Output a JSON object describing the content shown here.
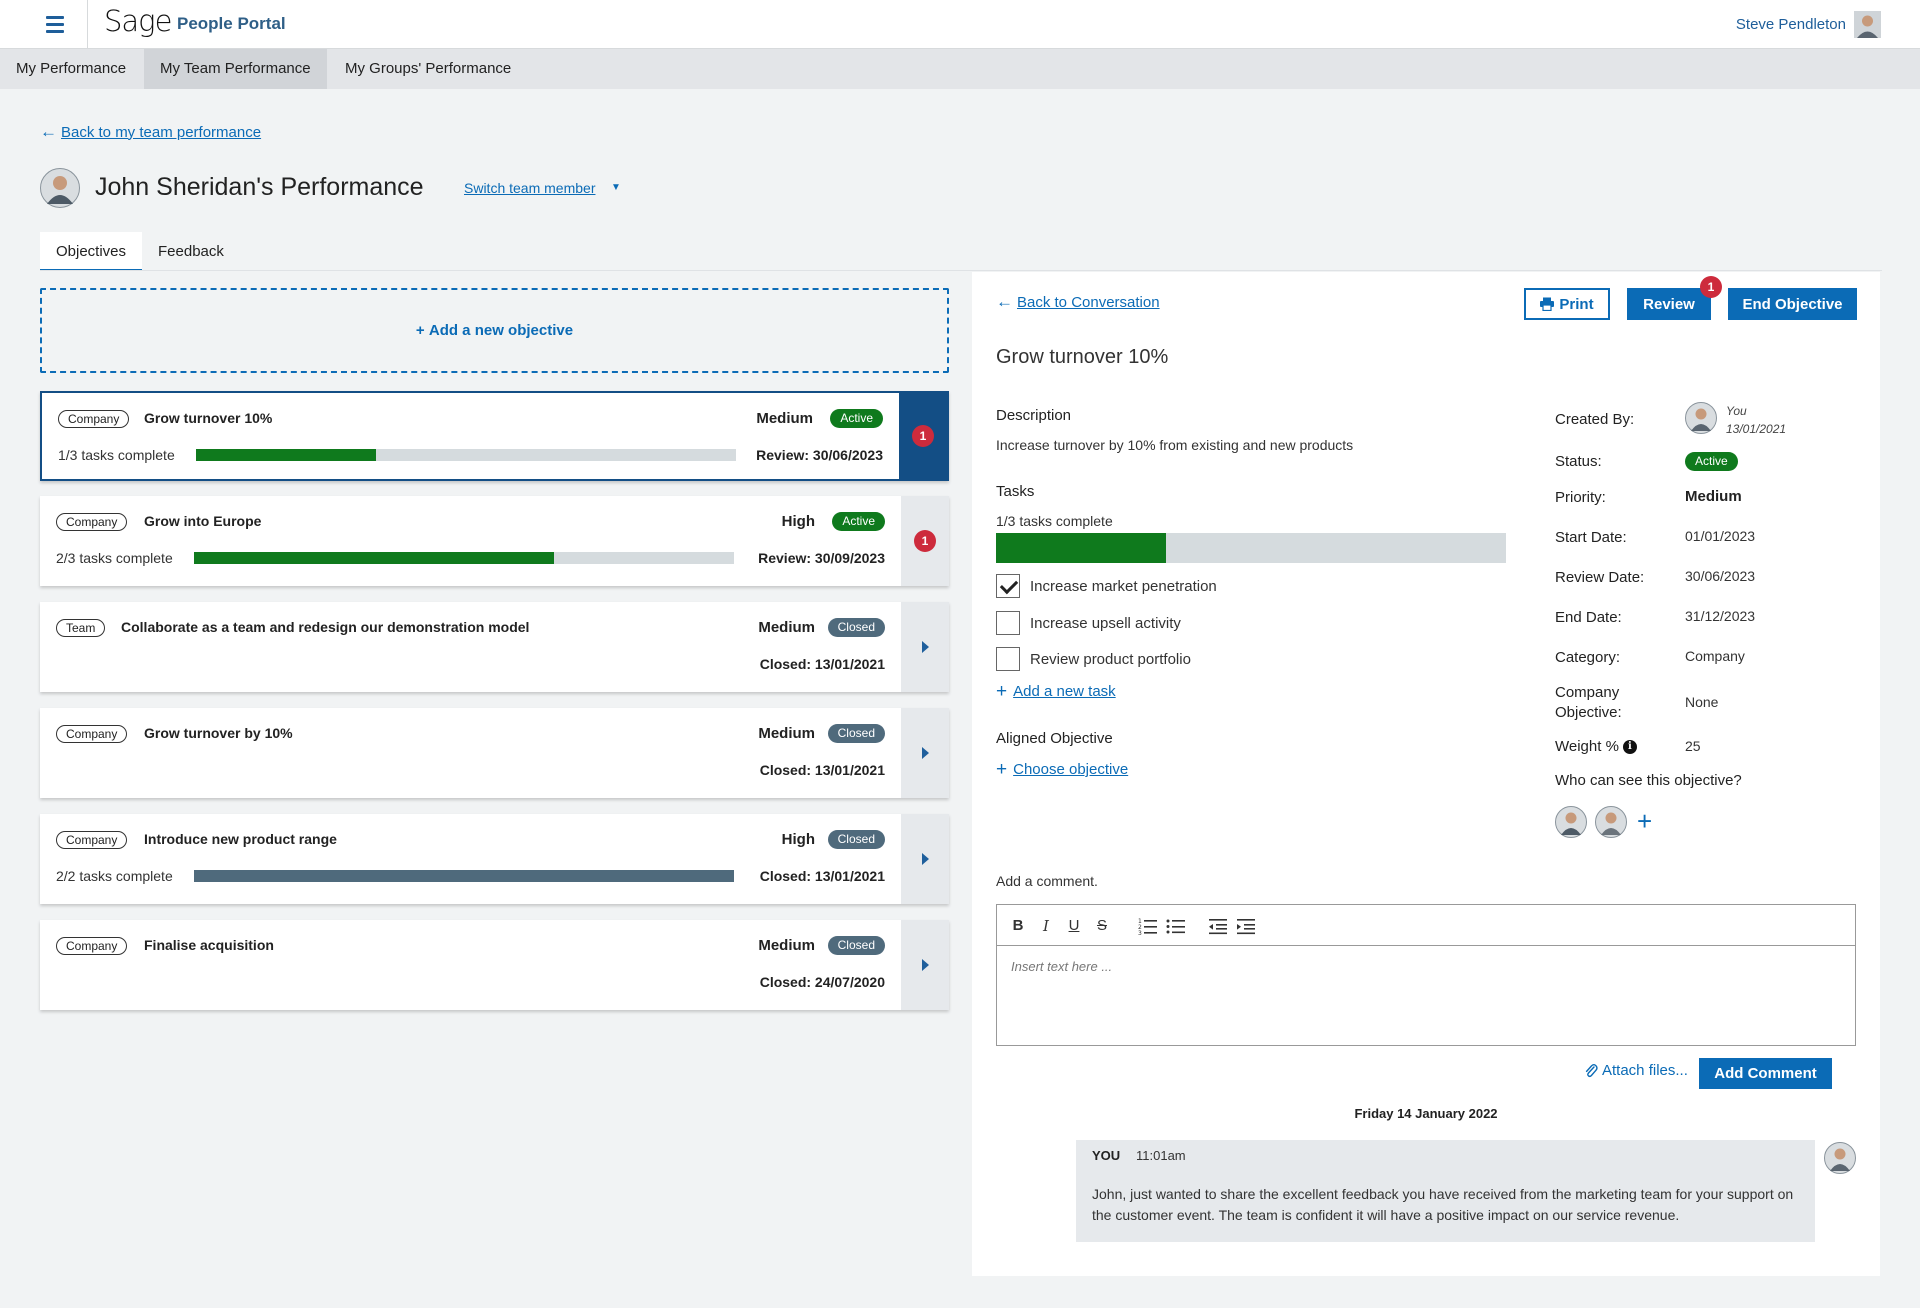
{
  "header": {
    "logo": "Sage",
    "portal_title": "People Portal",
    "user_name": "Steve Pendleton"
  },
  "nav": {
    "items": [
      {
        "label": "My Performance"
      },
      {
        "label": "My Team Performance",
        "active": true
      },
      {
        "label": "My Groups' Performance"
      }
    ]
  },
  "page": {
    "back_link": "Back to my team performance",
    "title": "John Sheridan's Performance",
    "switch_member": "Switch team member",
    "tabs": [
      {
        "label": "Objectives",
        "active": true
      },
      {
        "label": "Feedback"
      }
    ]
  },
  "objectives": {
    "add_label": "Add a new objective",
    "items": [
      {
        "tag": "Company",
        "title": "Grow turnover 10%",
        "priority": "Medium",
        "status": "Active",
        "tasks": "1/3 tasks complete",
        "progress": 0.333,
        "date": "Review: 30/06/2023",
        "badge": "1",
        "selected": true
      },
      {
        "tag": "Company",
        "title": "Grow into Europe",
        "priority": "High",
        "status": "Active",
        "tasks": "2/3 tasks complete",
        "progress": 0.667,
        "date": "Review: 30/09/2023",
        "badge": "1"
      },
      {
        "tag": "Team",
        "title": "Collaborate as a team and redesign our demonstration model",
        "priority": "Medium",
        "status": "Closed",
        "tasks": "",
        "date": "Closed: 13/01/2021"
      },
      {
        "tag": "Company",
        "title": "Grow turnover by 10%",
        "priority": "Medium",
        "status": "Closed",
        "tasks": "",
        "date": "Closed: 13/01/2021"
      },
      {
        "tag": "Company",
        "title": "Introduce new product range",
        "priority": "High",
        "status": "Closed",
        "tasks": "2/2 tasks complete",
        "progress": 1.0,
        "date": "Closed: 13/01/2021"
      },
      {
        "tag": "Company",
        "title": "Finalise acquisition",
        "priority": "Medium",
        "status": "Closed",
        "tasks": "",
        "date": "Closed: 24/07/2020"
      }
    ]
  },
  "detail": {
    "back_link": "Back to Conversation",
    "buttons": {
      "print": "Print",
      "review": "Review",
      "review_badge": "1",
      "end": "End Objective"
    },
    "title": "Grow turnover 10%",
    "description_label": "Description",
    "description": "Increase turnover by 10% from existing and new products",
    "tasks_label": "Tasks",
    "tasks_complete": "1/3 tasks complete",
    "tasks_progress": 0.333,
    "tasks": [
      {
        "label": "Increase market penetration",
        "checked": true
      },
      {
        "label": "Increase upsell activity",
        "checked": false
      },
      {
        "label": "Review product portfolio",
        "checked": false
      }
    ],
    "add_task": "Add a new task",
    "aligned_label": "Aligned Objective",
    "choose_objective": "Choose objective",
    "meta": {
      "created_by_label": "Created By:",
      "created_by": "You",
      "created_date": "13/01/2021",
      "status_label": "Status:",
      "status": "Active",
      "priority_label": "Priority:",
      "priority": "Medium",
      "start_label": "Start Date:",
      "start": "01/01/2023",
      "review_label": "Review Date:",
      "review": "30/06/2023",
      "end_label": "End Date:",
      "end": "31/12/2023",
      "category_label": "Category:",
      "category": "Company",
      "company_obj_label_1": "Company",
      "company_obj_label_2": "Objective:",
      "company_obj": "None",
      "weight_label": "Weight %",
      "weight": "25",
      "visibility_label": "Who can see this objective?"
    },
    "comment": {
      "label": "Add a comment.",
      "placeholder": "Insert text here ...",
      "attach": "Attach files...",
      "submit": "Add Comment"
    },
    "conversation": {
      "date": "Friday 14 January 2022",
      "messages": [
        {
          "author": "YOU",
          "time": "11:01am",
          "text": "John, just wanted to share the excellent feedback you have received from the marketing team for your support on the customer event. The team is confident it will have a positive impact on our service revenue."
        }
      ]
    }
  },
  "colors": {
    "accent": "#0b6bb6",
    "active": "#0f7a1d",
    "closed": "#4f6a7c",
    "badge": "#cd2b3c",
    "selected": "#134e85"
  },
  "icons": {
    "menu": "hamburger-icon",
    "back": "arrow-left-icon",
    "print": "printer-icon",
    "attach": "paperclip-icon",
    "info": "info-icon",
    "add": "plus-icon"
  }
}
